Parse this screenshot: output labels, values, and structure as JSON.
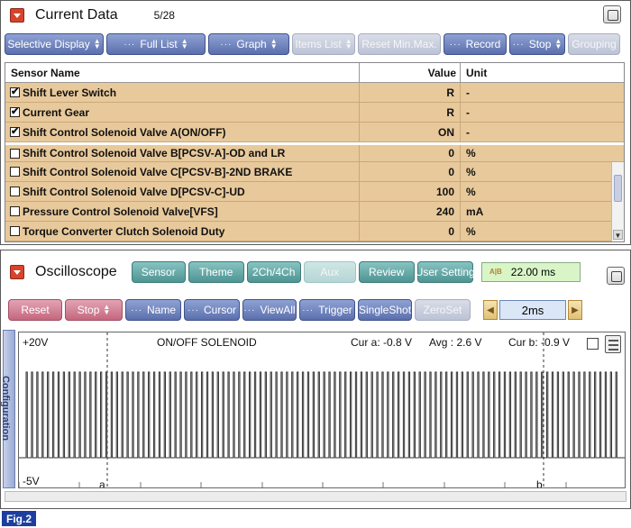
{
  "current_data": {
    "title": "Current Data",
    "page_count": "5/28",
    "toolbar": [
      {
        "label": "Selective Display",
        "state": "active",
        "dots": false,
        "arrows": true
      },
      {
        "label": "Full List",
        "state": "active",
        "dots": true,
        "arrows": true
      },
      {
        "label": "Graph",
        "state": "active",
        "dots": true,
        "arrows": true
      },
      {
        "label": "Items List",
        "state": "disabled",
        "dots": false,
        "arrows": true
      },
      {
        "label": "Reset Min.Max.",
        "state": "disabled",
        "dots": false,
        "arrows": false
      },
      {
        "label": "Record",
        "state": "active",
        "dots": true,
        "arrows": false
      },
      {
        "label": "Stop",
        "state": "active",
        "dots": true,
        "arrows": true
      },
      {
        "label": "Grouping",
        "state": "disabled",
        "dots": false,
        "arrows": false
      }
    ],
    "columns": {
      "name": "Sensor Name",
      "value": "Value",
      "unit": "Unit"
    },
    "rows": [
      {
        "name": "Shift Lever Switch",
        "value": "R",
        "unit": "-",
        "checked": true
      },
      {
        "name": "Current Gear",
        "value": "R",
        "unit": "-",
        "checked": true
      },
      {
        "name": "Shift Control Solenoid Valve A(ON/OFF)",
        "value": "ON",
        "unit": "-",
        "checked": true
      },
      {
        "name": "Shift Control Solenoid Valve B[PCSV-A]-OD and LR",
        "value": "0",
        "unit": "%",
        "checked": false
      },
      {
        "name": "Shift Control Solenoid Valve C[PCSV-B]-2ND BRAKE",
        "value": "0",
        "unit": "%",
        "checked": false
      },
      {
        "name": "Shift Control Solenoid Valve D[PCSV-C]-UD",
        "value": "100",
        "unit": "%",
        "checked": false
      },
      {
        "name": "Pressure Control Solenoid Valve[VFS]",
        "value": "240",
        "unit": "mA",
        "checked": false
      },
      {
        "name": "Torque Converter Clutch Solenoid Duty",
        "value": "0",
        "unit": "%",
        "checked": false
      }
    ]
  },
  "oscilloscope": {
    "title": "Oscilloscope",
    "mode_buttons": [
      {
        "label": "Sensor",
        "state": "active"
      },
      {
        "label": "Theme",
        "state": "active"
      },
      {
        "label": "2Ch/4Ch",
        "state": "active"
      },
      {
        "label": "Aux",
        "state": "disabled"
      },
      {
        "label": "Review",
        "state": "active"
      },
      {
        "label": "User Setting",
        "state": "active"
      }
    ],
    "time_readout": "22.00 ms",
    "ab_icon": "A|B",
    "controls": [
      {
        "label": "Reset",
        "style": "pink",
        "dots": false,
        "arrows": false
      },
      {
        "label": "Stop",
        "style": "pink",
        "dots": false,
        "arrows": true
      },
      {
        "label": "Name",
        "style": "blue",
        "dots": true,
        "arrows": false
      },
      {
        "label": "Cursor",
        "style": "blue",
        "dots": true,
        "arrows": false
      },
      {
        "label": "ViewAll",
        "style": "blue",
        "dots": true,
        "arrows": false
      },
      {
        "label": "Trigger",
        "style": "blue",
        "dots": true,
        "arrows": false
      },
      {
        "label": "SingleShot",
        "style": "blue",
        "dots": false,
        "arrows": false
      },
      {
        "label": "ZeroSet",
        "style": "disabled",
        "dots": false,
        "arrows": false
      }
    ],
    "timebase": "2ms",
    "side_tab": "Configuration",
    "scope": {
      "v_max": "+20V",
      "v_min": "-5V",
      "signal_name": "ON/OFF SOLENOID",
      "cursor_a": "Cur a: -0.8 V",
      "average": "Avg : 2.6 V",
      "cursor_b": "Cur b: -0.9 V",
      "cursor_a_marker": "a",
      "cursor_b_marker": "b",
      "pulse_count": 112
    }
  },
  "figure_label": "Fig.2"
}
